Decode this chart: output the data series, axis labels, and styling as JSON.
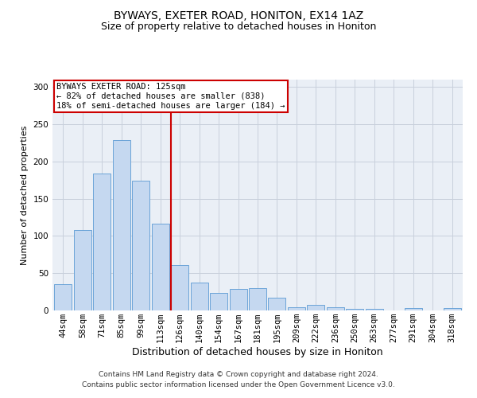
{
  "title": "BYWAYS, EXETER ROAD, HONITON, EX14 1AZ",
  "subtitle": "Size of property relative to detached houses in Honiton",
  "xlabel": "Distribution of detached houses by size in Honiton",
  "ylabel": "Number of detached properties",
  "footer_line1": "Contains HM Land Registry data © Crown copyright and database right 2024.",
  "footer_line2": "Contains public sector information licensed under the Open Government Licence v3.0.",
  "categories": [
    "44sqm",
    "58sqm",
    "71sqm",
    "85sqm",
    "99sqm",
    "113sqm",
    "126sqm",
    "140sqm",
    "154sqm",
    "167sqm",
    "181sqm",
    "195sqm",
    "209sqm",
    "222sqm",
    "236sqm",
    "250sqm",
    "263sqm",
    "277sqm",
    "291sqm",
    "304sqm",
    "318sqm"
  ],
  "values": [
    35,
    108,
    184,
    229,
    174,
    116,
    61,
    37,
    23,
    29,
    30,
    17,
    4,
    7,
    4,
    2,
    2,
    0,
    3,
    0,
    3
  ],
  "bar_color": "#c5d8f0",
  "bar_edge_color": "#5a9ad4",
  "vline_x_index": 6,
  "vline_color": "#cc0000",
  "annotation_line1": "BYWAYS EXETER ROAD: 125sqm",
  "annotation_line2": "← 82% of detached houses are smaller (838)",
  "annotation_line3": "18% of semi-detached houses are larger (184) →",
  "annotation_box_color": "#ffffff",
  "annotation_box_edge_color": "#cc0000",
  "ylim": [
    0,
    310
  ],
  "yticks": [
    0,
    50,
    100,
    150,
    200,
    250,
    300
  ],
  "title_fontsize": 10,
  "subtitle_fontsize": 9,
  "xlabel_fontsize": 9,
  "ylabel_fontsize": 8,
  "tick_fontsize": 7.5,
  "annotation_fontsize": 7.5,
  "footer_fontsize": 6.5,
  "grid_color": "#c8d0dc",
  "bg_color": "#eaeff6"
}
